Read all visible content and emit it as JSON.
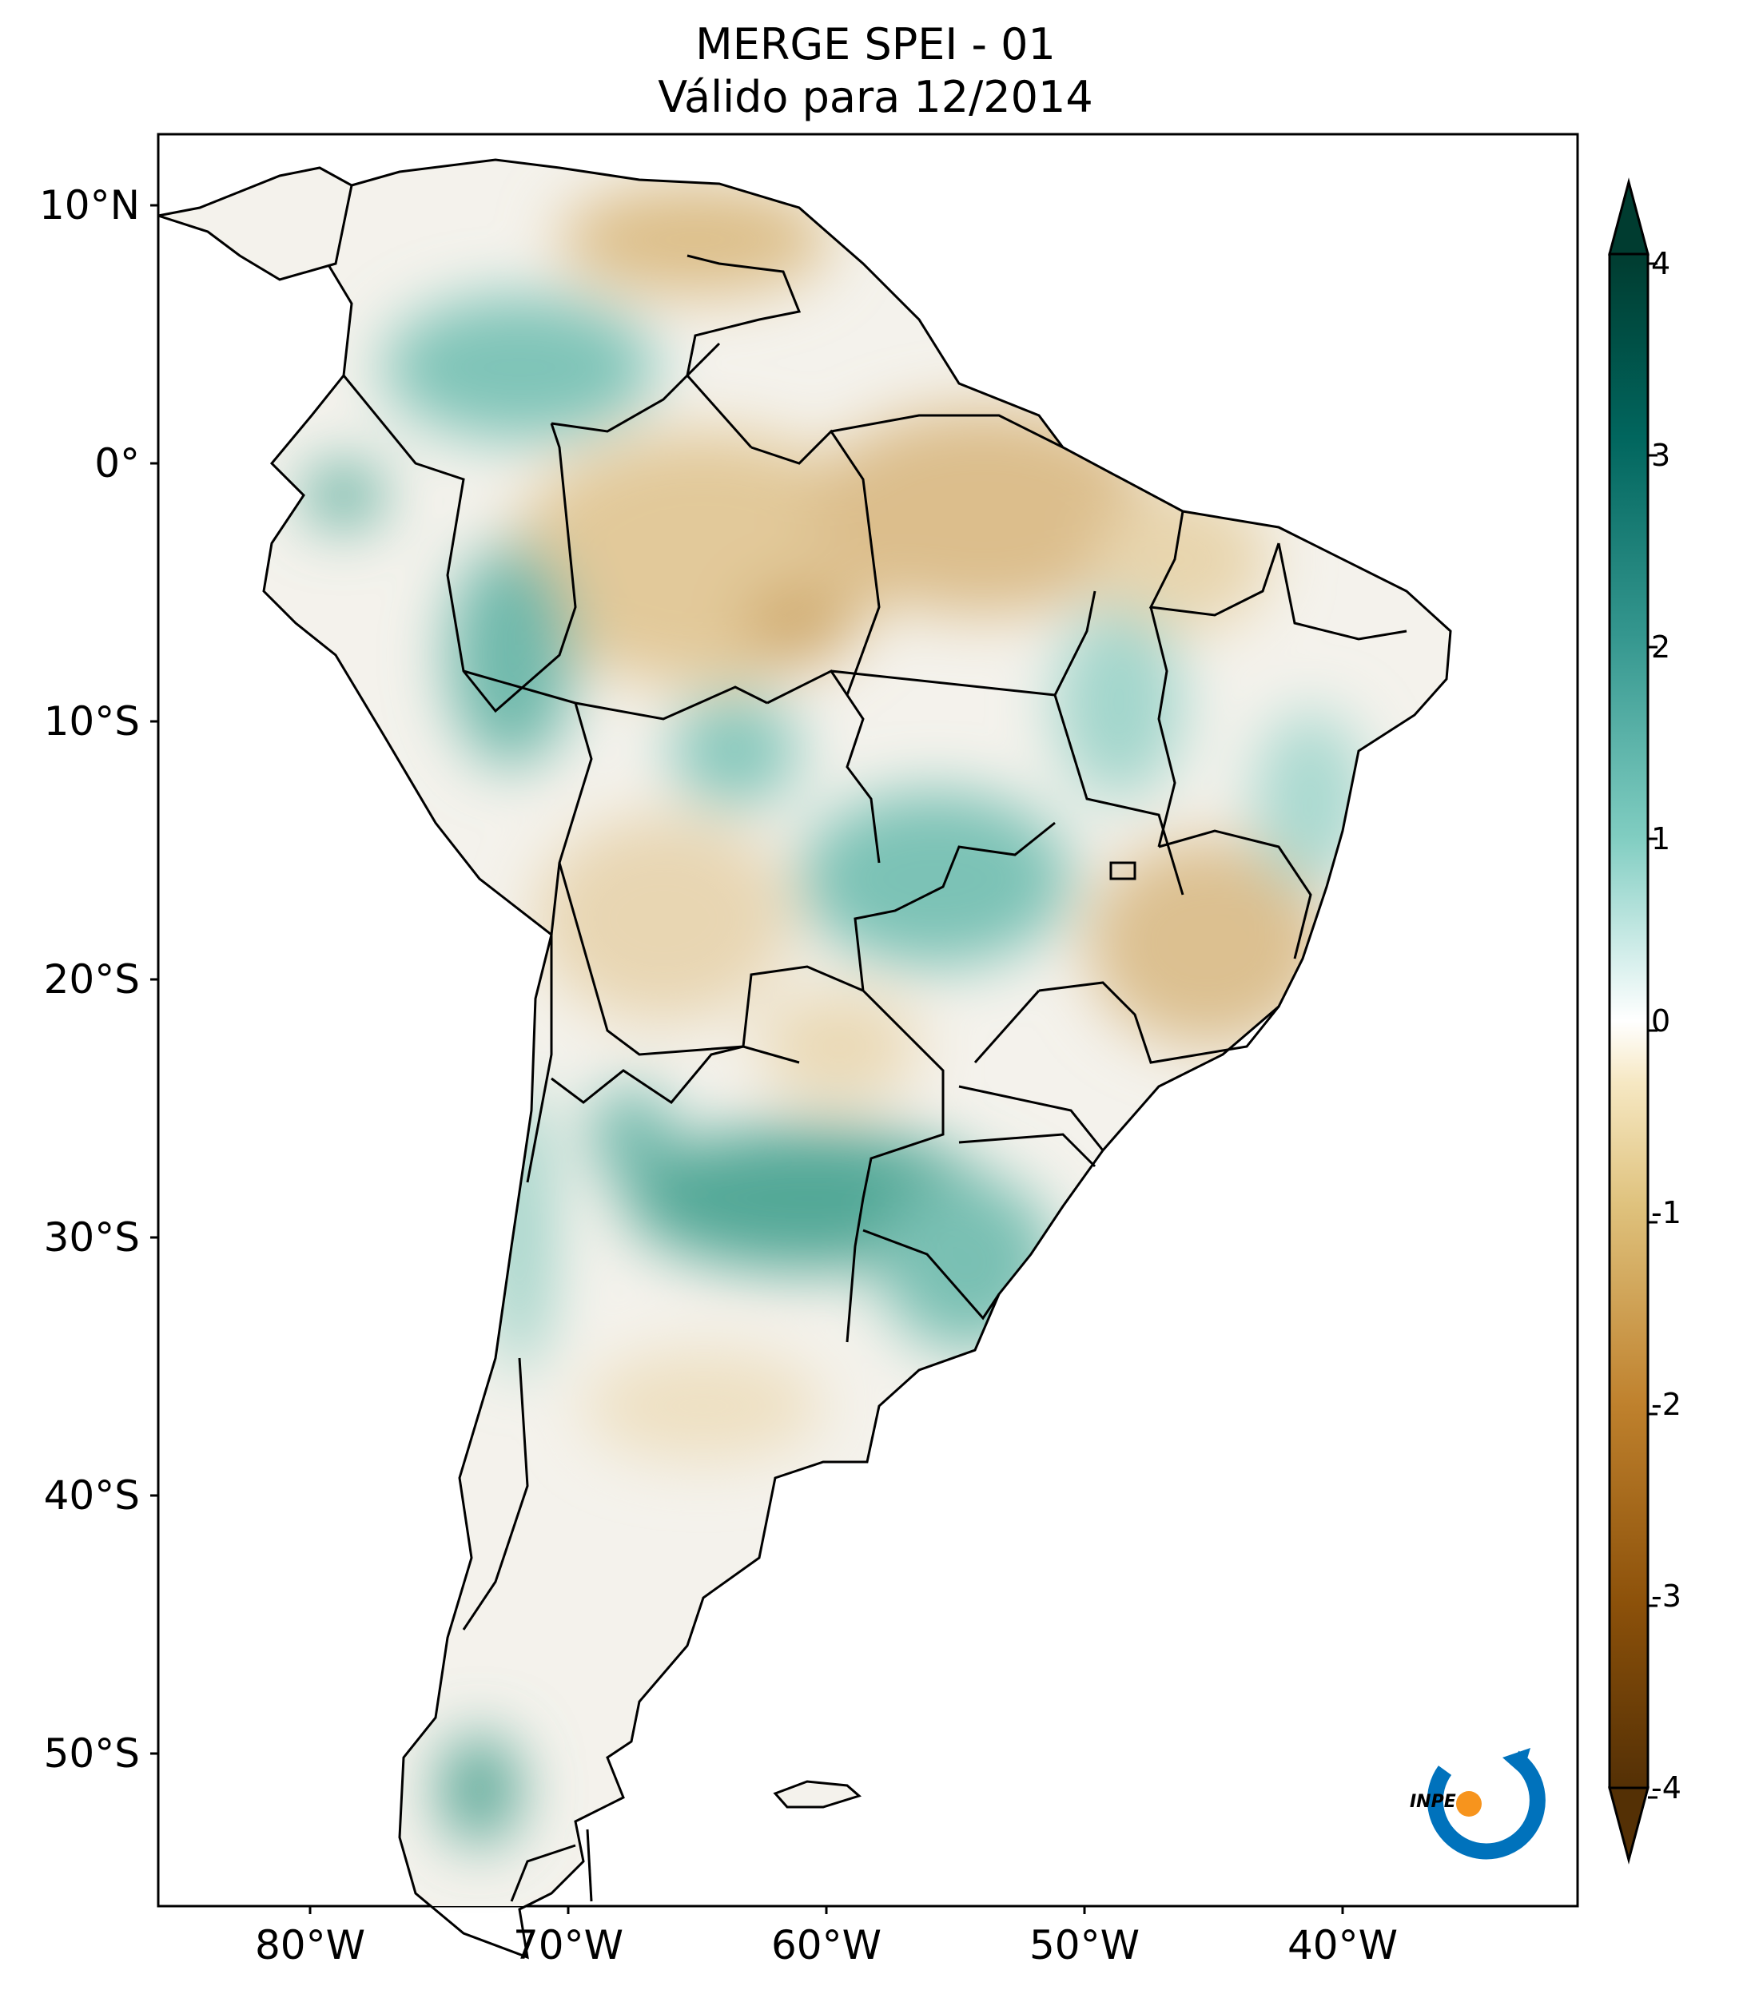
{
  "title": {
    "line1": "MERGE   SPEI - 01",
    "line2": "Válido para 12/2014"
  },
  "axes": {
    "lat_labels": [
      "10°N",
      "0°",
      "10°S",
      "20°S",
      "30°S",
      "40°S",
      "50°S"
    ],
    "lon_labels": [
      "80°W",
      "70°W",
      "60°W",
      "50°W",
      "40°W"
    ]
  },
  "colorbar": {
    "ticks": [
      "4",
      "3",
      "2",
      "1",
      "0",
      "-1",
      "-2",
      "-3",
      "-4"
    ],
    "range": [
      -4,
      4
    ],
    "extend": "both",
    "colors": {
      "dry_strong": "#543005",
      "dry": "#bf812d",
      "dry_light": "#f6e8c3",
      "neutral": "#ffffff",
      "wet_light": "#c7eae5",
      "wet": "#35978f",
      "wet_strong": "#003c30"
    }
  },
  "logo": {
    "text": "INPE",
    "colors": {
      "blue": "#0072bc",
      "orange": "#f7941d"
    }
  },
  "map": {
    "colors": {
      "land": "#f4f2ec",
      "border": "#000000",
      "dry_zone": "#e2c99a",
      "wet_zone": "#3f9c8c"
    }
  }
}
